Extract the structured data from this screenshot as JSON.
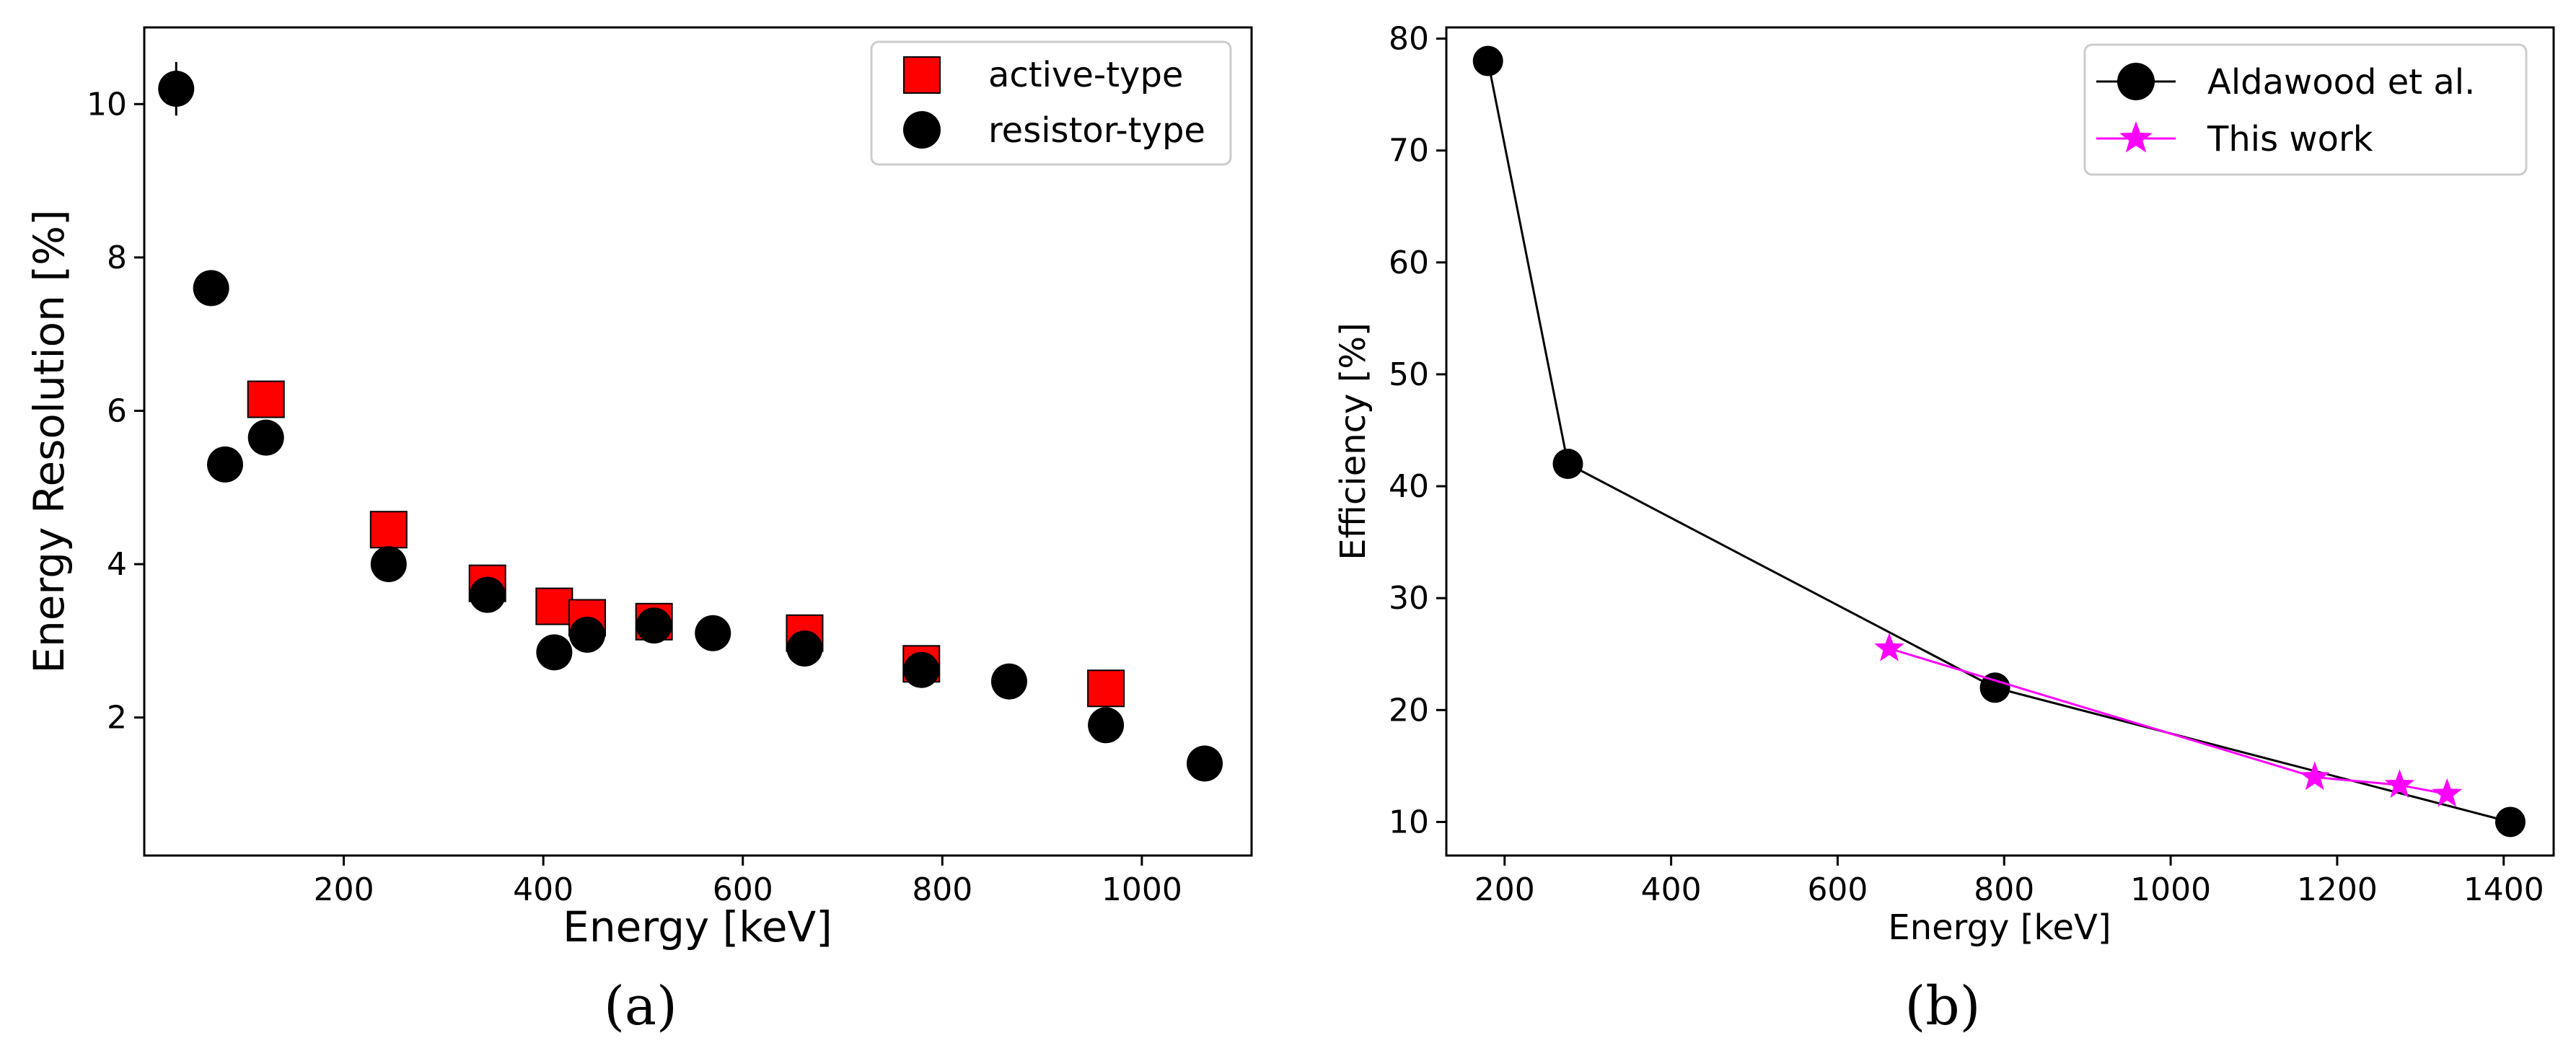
{
  "chart_data": [
    {
      "type": "scatter",
      "panel": "a",
      "caption": "(a)",
      "xlabel": "Energy [keV]",
      "ylabel": "Energy Resolution [%]",
      "xlim": [
        0,
        1110
      ],
      "ylim": [
        0.2,
        11.0
      ],
      "xticks": [
        200,
        400,
        600,
        800,
        1000
      ],
      "yticks": [
        2,
        4,
        6,
        8,
        10
      ],
      "grid": false,
      "legend_position": "top-right",
      "series": [
        {
          "name": "active-type",
          "marker": "square",
          "color": "#ff0000",
          "points": [
            {
              "x": 122,
              "y": 6.15
            },
            {
              "x": 245,
              "y": 4.45
            },
            {
              "x": 344,
              "y": 3.75
            },
            {
              "x": 411,
              "y": 3.45
            },
            {
              "x": 444,
              "y": 3.3
            },
            {
              "x": 511,
              "y": 3.25
            },
            {
              "x": 662,
              "y": 3.1
            },
            {
              "x": 779,
              "y": 2.7
            },
            {
              "x": 964,
              "y": 2.38
            }
          ]
        },
        {
          "name": "resistor-type",
          "marker": "circle",
          "color": "#000000",
          "points": [
            {
              "x": 32,
              "y": 10.2,
              "yerr": 0.35
            },
            {
              "x": 67,
              "y": 7.6
            },
            {
              "x": 81,
              "y": 5.3
            },
            {
              "x": 122,
              "y": 5.65
            },
            {
              "x": 245,
              "y": 4.0
            },
            {
              "x": 344,
              "y": 3.6
            },
            {
              "x": 411,
              "y": 2.85
            },
            {
              "x": 444,
              "y": 3.08
            },
            {
              "x": 511,
              "y": 3.2
            },
            {
              "x": 570,
              "y": 3.1
            },
            {
              "x": 662,
              "y": 2.9
            },
            {
              "x": 779,
              "y": 2.62
            },
            {
              "x": 867,
              "y": 2.47
            },
            {
              "x": 964,
              "y": 1.9
            },
            {
              "x": 1063,
              "y": 1.4
            }
          ]
        }
      ]
    },
    {
      "type": "line",
      "panel": "b",
      "caption": "(b)",
      "xlabel": "Energy [keV]",
      "ylabel": "Efficiency [%]",
      "xlim": [
        130,
        1460
      ],
      "ylim": [
        7,
        81
      ],
      "xticks": [
        200,
        400,
        600,
        800,
        1000,
        1200,
        1400
      ],
      "yticks": [
        10,
        20,
        30,
        40,
        50,
        60,
        70,
        80
      ],
      "grid": false,
      "legend_position": "top-right",
      "series": [
        {
          "name": "Aldawood et al.",
          "marker": "circle",
          "color": "#000000",
          "points": [
            {
              "x": 180,
              "y": 78
            },
            {
              "x": 276,
              "y": 42
            },
            {
              "x": 789,
              "y": 22
            },
            {
              "x": 1408,
              "y": 10
            }
          ]
        },
        {
          "name": "This work",
          "marker": "star",
          "color": "#ff00ff",
          "points": [
            {
              "x": 662,
              "y": 25.5
            },
            {
              "x": 1173,
              "y": 14
            },
            {
              "x": 1275,
              "y": 13.3
            },
            {
              "x": 1332,
              "y": 12.5
            }
          ]
        }
      ]
    }
  ]
}
